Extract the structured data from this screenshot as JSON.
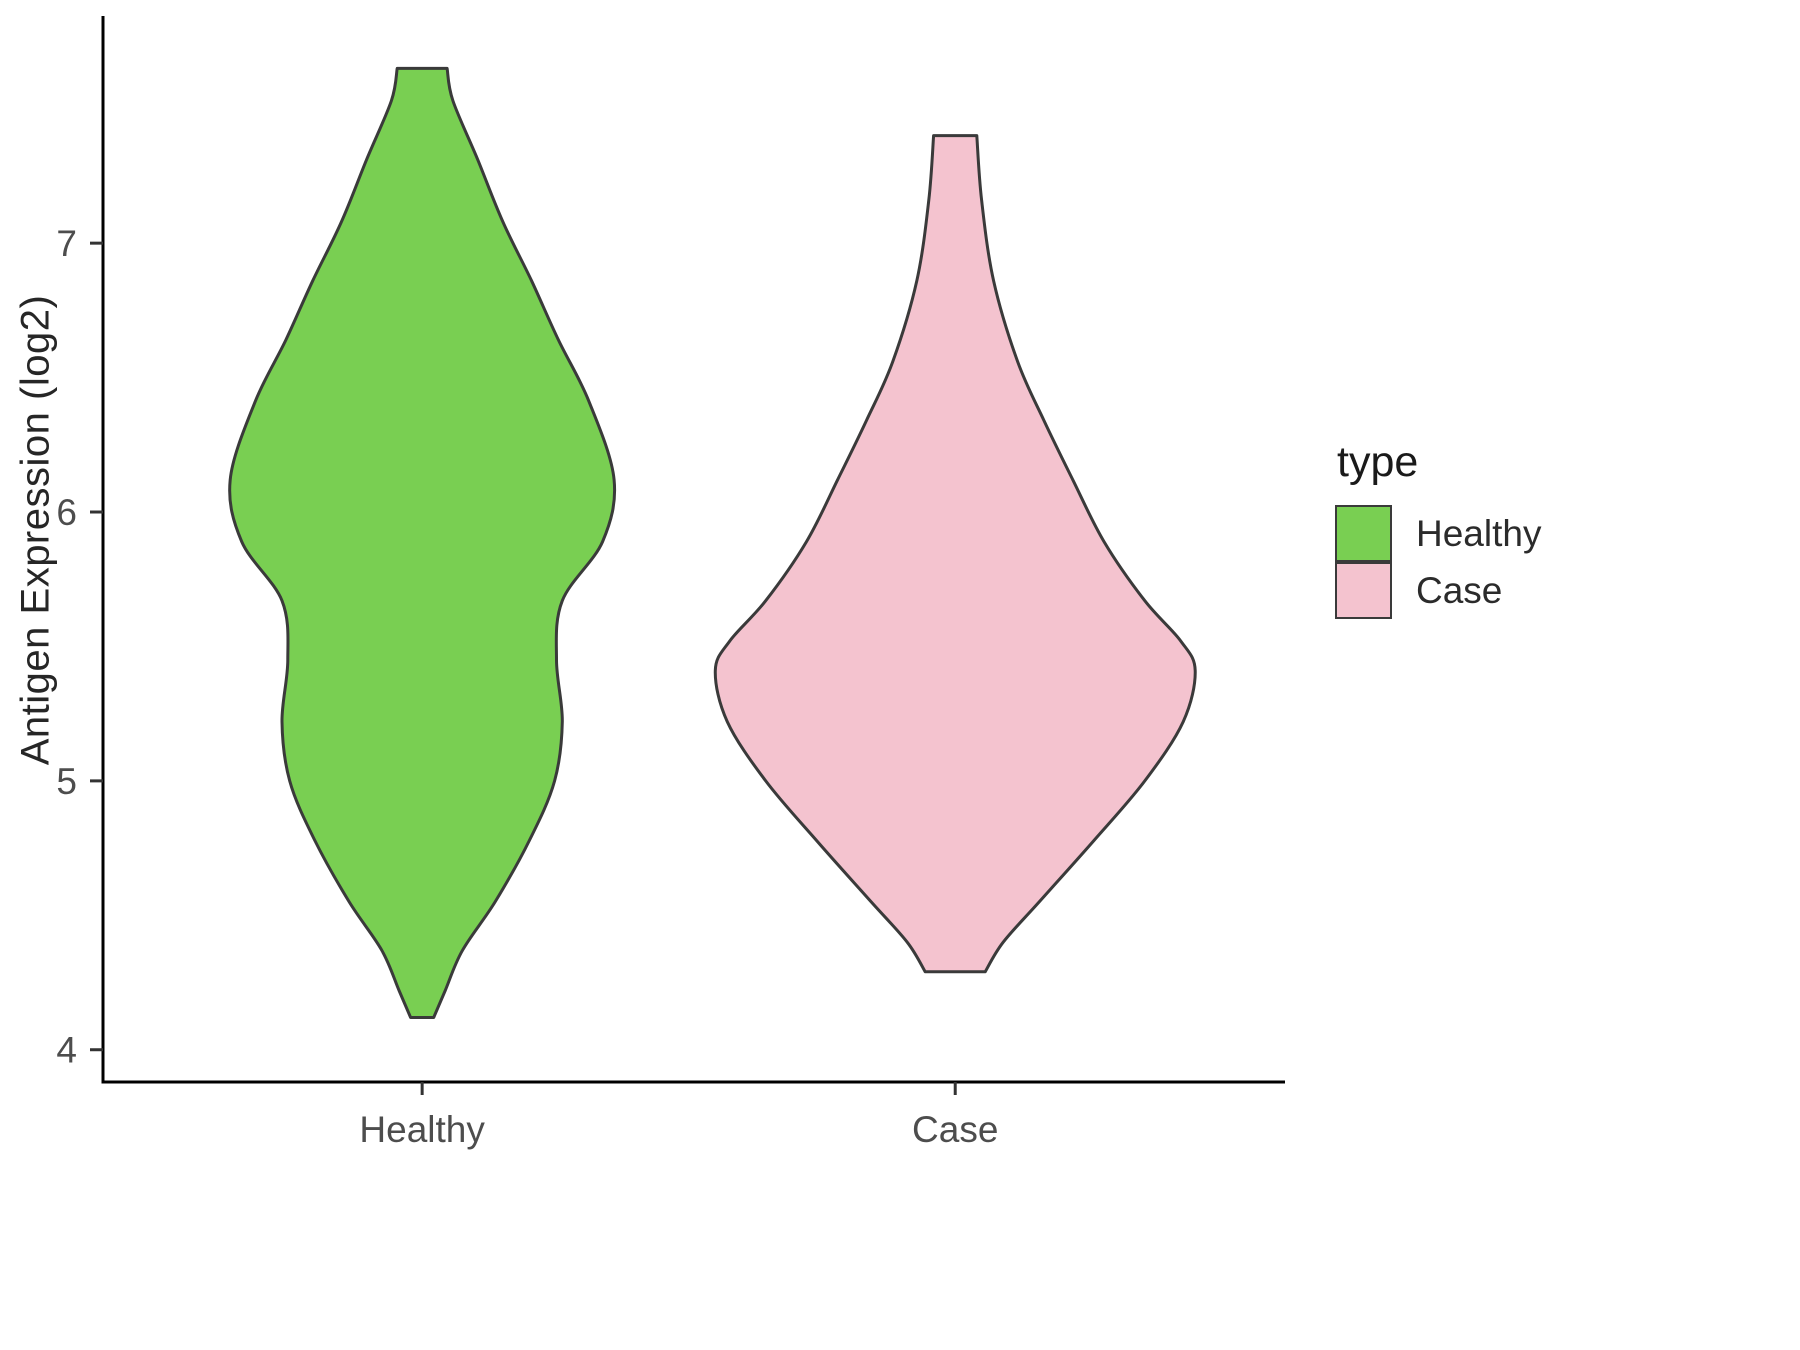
{
  "chart_data": {
    "type": "violin",
    "title": "",
    "xlabel": "",
    "ylabel": "Antigen Expression (log2)",
    "ylim": [
      3.88,
      7.83
    ],
    "y_ticks": [
      4,
      5,
      6,
      7
    ],
    "categories": [
      "Healthy",
      "Case"
    ],
    "grid": "off",
    "legend_position": "right",
    "axis_line_color": "#000000",
    "tick_label_color": "#4d4d4d",
    "stroke_color": "#3a3a3a",
    "legend": {
      "title": "type",
      "entries": [
        {
          "label": "Healthy",
          "color": "#79CF52"
        },
        {
          "label": "Case",
          "color": "#F4C3CF"
        }
      ]
    },
    "series": [
      {
        "name": "Healthy",
        "color": "#79CF52",
        "center_frac": 0.27,
        "max_halfwidth_frac": 0.1624,
        "y_range": [
          4.12,
          7.65
        ],
        "profile": [
          {
            "y": 7.65,
            "d": 0.13
          },
          {
            "y": 7.53,
            "d": 0.16
          },
          {
            "y": 7.31,
            "d": 0.29
          },
          {
            "y": 7.08,
            "d": 0.42
          },
          {
            "y": 6.86,
            "d": 0.57
          },
          {
            "y": 6.64,
            "d": 0.71
          },
          {
            "y": 6.41,
            "d": 0.87
          },
          {
            "y": 6.12,
            "d": 1.0
          },
          {
            "y": 5.89,
            "d": 0.94
          },
          {
            "y": 5.67,
            "d": 0.73
          },
          {
            "y": 5.45,
            "d": 0.7
          },
          {
            "y": 5.22,
            "d": 0.73
          },
          {
            "y": 5.0,
            "d": 0.69
          },
          {
            "y": 4.78,
            "d": 0.56
          },
          {
            "y": 4.55,
            "d": 0.38
          },
          {
            "y": 4.37,
            "d": 0.21
          },
          {
            "y": 4.22,
            "d": 0.12
          },
          {
            "y": 4.12,
            "d": 0.06
          }
        ]
      },
      {
        "name": "Case",
        "color": "#F4C3CF",
        "center_frac": 0.721,
        "max_halfwidth_frac": 0.203,
        "y_range": [
          4.29,
          7.4
        ],
        "profile": [
          {
            "y": 7.4,
            "d": 0.09
          },
          {
            "y": 7.16,
            "d": 0.11
          },
          {
            "y": 6.86,
            "d": 0.16
          },
          {
            "y": 6.56,
            "d": 0.26
          },
          {
            "y": 6.34,
            "d": 0.37
          },
          {
            "y": 6.12,
            "d": 0.49
          },
          {
            "y": 5.89,
            "d": 0.62
          },
          {
            "y": 5.67,
            "d": 0.79
          },
          {
            "y": 5.52,
            "d": 0.94
          },
          {
            "y": 5.41,
            "d": 1.0
          },
          {
            "y": 5.22,
            "d": 0.95
          },
          {
            "y": 5.0,
            "d": 0.79
          },
          {
            "y": 4.78,
            "d": 0.58
          },
          {
            "y": 4.55,
            "d": 0.35
          },
          {
            "y": 4.4,
            "d": 0.2
          },
          {
            "y": 4.29,
            "d": 0.125
          }
        ]
      }
    ]
  }
}
